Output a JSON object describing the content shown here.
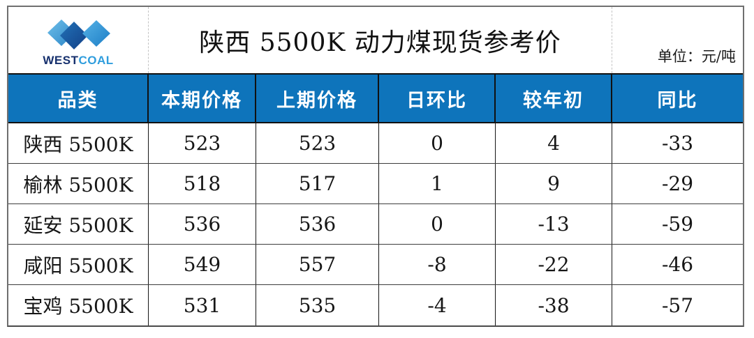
{
  "header": {
    "logo": {
      "mark_icon": "w-diamonds-icon",
      "text_west": "WEST",
      "text_coal": "COAL"
    },
    "title": "陕西 5500K 动力煤现货参考价",
    "unit_label": "单位：元/吨"
  },
  "colors": {
    "header_blue": "#0e74bb",
    "logo_dark_navy": "#17316e",
    "logo_light_blue": "#2f9ddd",
    "border_gray": "#6f6f6f",
    "grid_black": "#161616"
  },
  "chart_data": {
    "type": "table",
    "title": "陕西 5500K 动力煤现货参考价",
    "unit": "元/吨",
    "columns": [
      "品类",
      "本期价格",
      "上期价格",
      "日环比",
      "较年初",
      "同比"
    ],
    "rows": [
      [
        "陕西 5500K",
        "523",
        "523",
        "0",
        "4",
        "-33"
      ],
      [
        "榆林 5500K",
        "518",
        "517",
        "1",
        "9",
        "-29"
      ],
      [
        "延安 5500K",
        "536",
        "536",
        "0",
        "-13",
        "-59"
      ],
      [
        "咸阳 5500K",
        "549",
        "557",
        "-8",
        "-22",
        "-46"
      ],
      [
        "宝鸡 5500K",
        "531",
        "535",
        "-4",
        "-38",
        "-57"
      ]
    ]
  }
}
